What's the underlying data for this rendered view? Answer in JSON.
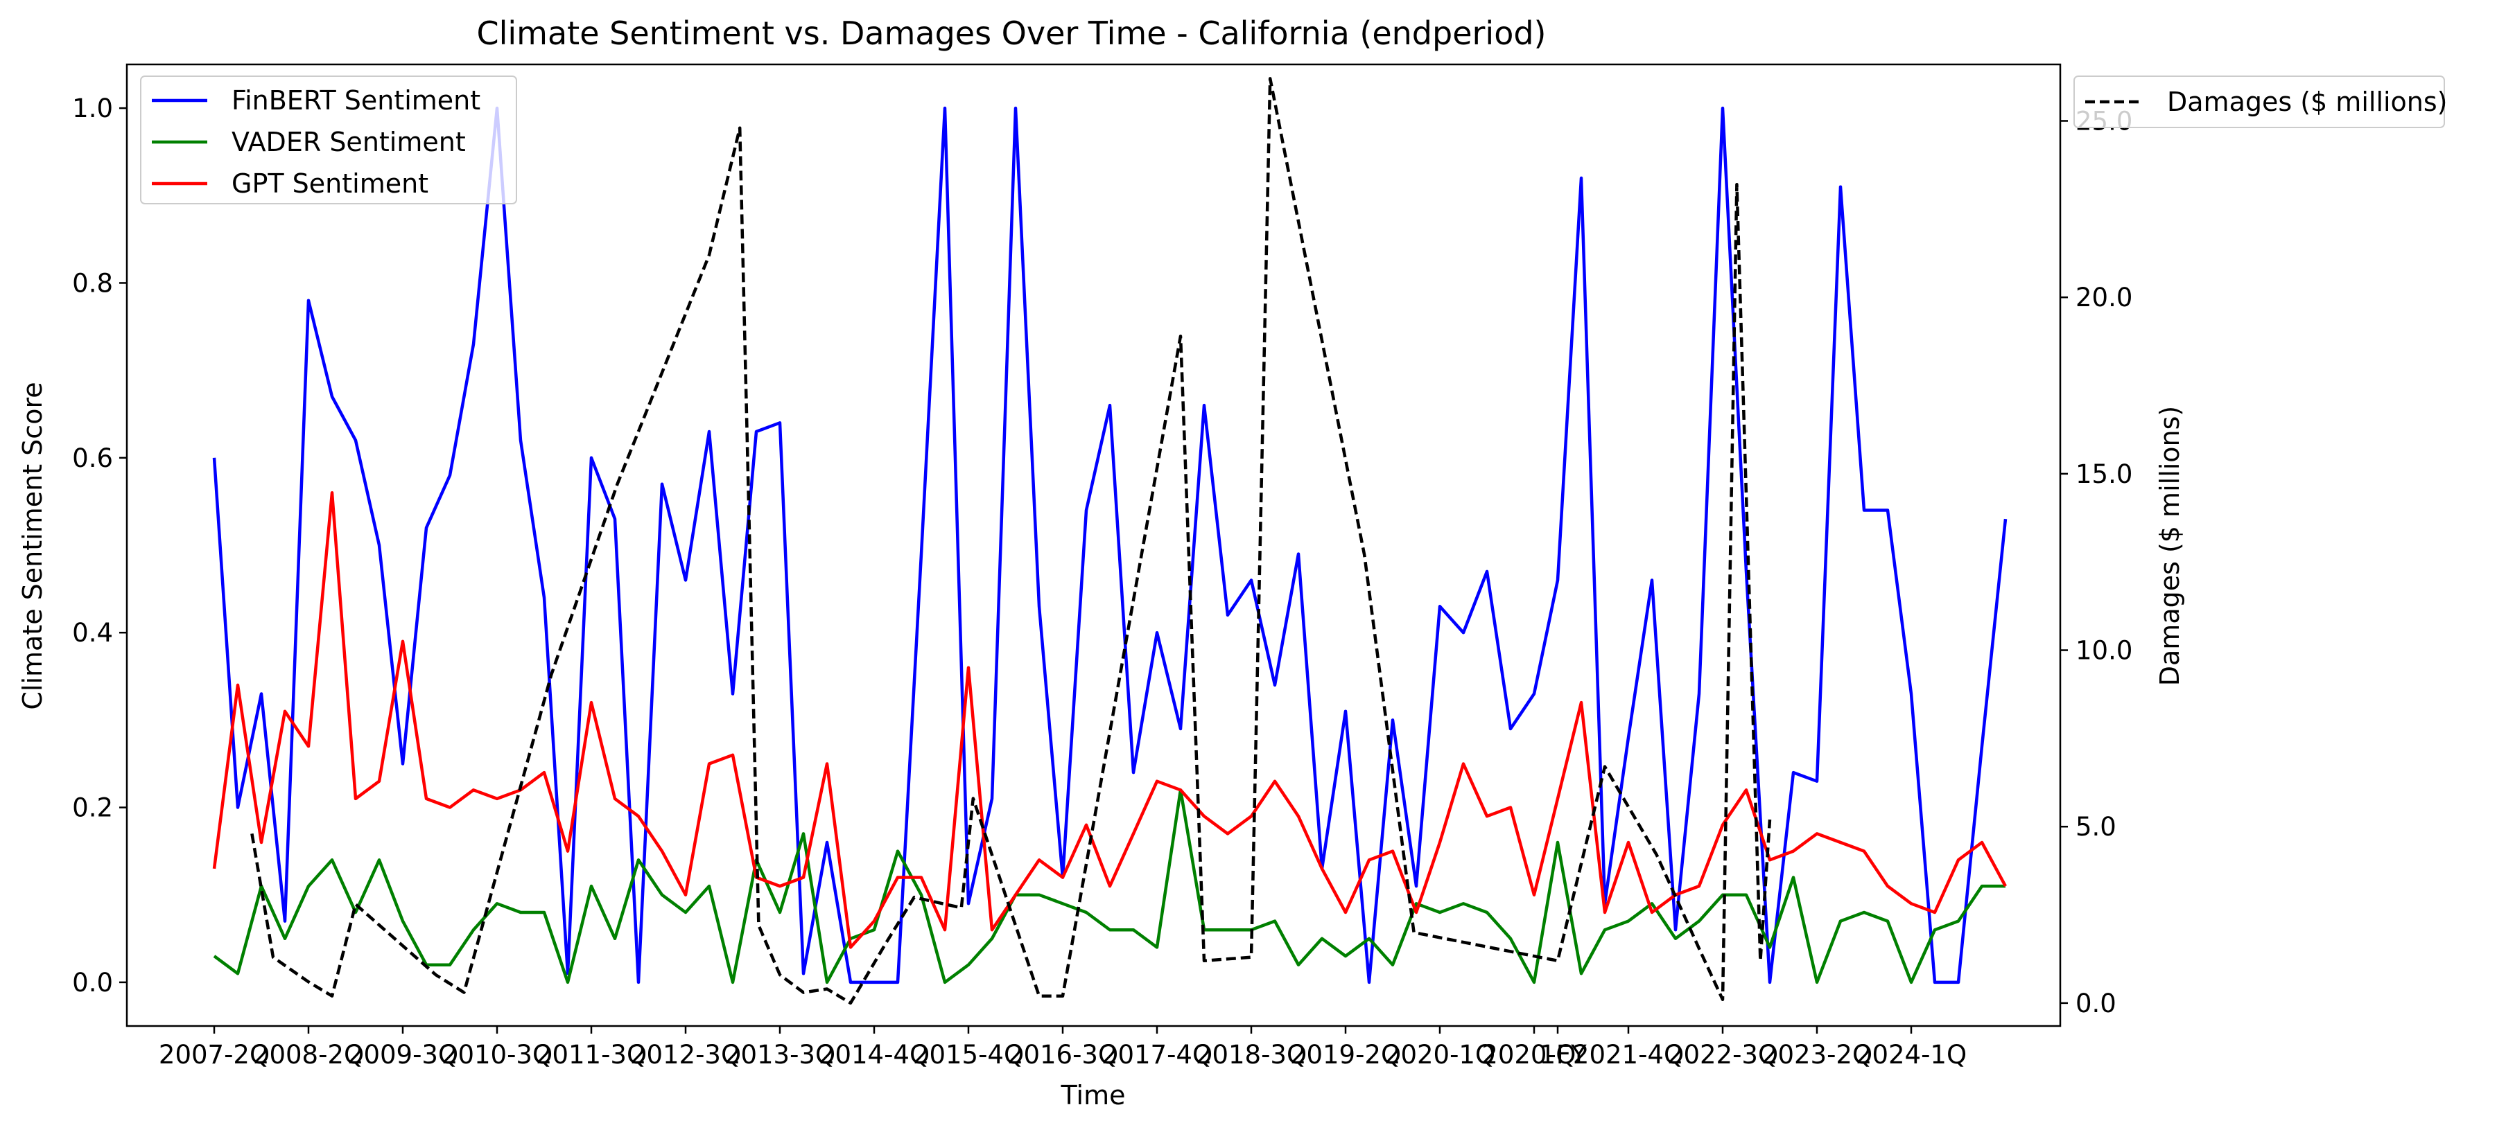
{
  "chart_data": {
    "type": "line",
    "title": "Climate Sentiment vs. Damages Over Time - California (endperiod)",
    "xlabel": "Time",
    "ylabel": "Climate Sentiment Score",
    "y2label": "Damages ($ millions)",
    "ylim": [
      -0.05,
      1.05
    ],
    "y2lim": [
      -0.65,
      26.6
    ],
    "yticks": [
      "0.0",
      "0.2",
      "0.4",
      "0.6",
      "0.8",
      "1.0"
    ],
    "y2ticks": [
      "0.0",
      "5.0",
      "10.0",
      "15.0",
      "20.0",
      "25.0"
    ],
    "grid": false,
    "legend_left": "top-left",
    "legend_right": "outside top-right",
    "xticks": [
      {
        "index": 0,
        "label": "2007-2Q"
      },
      {
        "index": 4,
        "label": "2008-2Q"
      },
      {
        "index": 8,
        "label": "2009-3Q"
      },
      {
        "index": 12,
        "label": "2010-3Q"
      },
      {
        "index": 16,
        "label": "2011-3Q"
      },
      {
        "index": 20,
        "label": "2012-3Q"
      },
      {
        "index": 24,
        "label": "2013-3Q"
      },
      {
        "index": 28,
        "label": "2014-4Q"
      },
      {
        "index": 32,
        "label": "2015-4Q"
      },
      {
        "index": 36,
        "label": "2016-3Q"
      },
      {
        "index": 40,
        "label": "2017-4Q"
      },
      {
        "index": 44,
        "label": "2018-3Q"
      },
      {
        "index": 48,
        "label": "2019-2Q"
      },
      {
        "index": 52,
        "label": "2020-1Q"
      },
      {
        "index": 56,
        "label": "2020-FY"
      },
      {
        "index": 57,
        "label": "1Q"
      },
      {
        "index": 60,
        "label": "2021-4Q"
      },
      {
        "index": 64,
        "label": "2022-3Q"
      },
      {
        "index": 68,
        "label": "2023-2Q"
      },
      {
        "index": 72,
        "label": "2024-1Q"
      }
    ],
    "x": [
      0,
      1,
      2,
      3,
      4,
      5,
      6,
      7,
      8,
      9,
      10,
      11,
      12,
      13,
      14,
      15,
      16,
      17,
      18,
      19,
      20,
      21,
      22,
      23,
      24,
      25,
      26,
      27,
      28,
      29,
      30,
      31,
      32,
      33,
      34,
      35,
      36,
      37,
      38,
      39,
      40,
      41,
      42,
      43,
      44,
      45,
      46,
      47,
      48,
      49,
      50,
      51,
      52,
      53,
      54,
      55,
      56,
      57,
      58,
      59,
      60,
      61,
      62,
      63,
      64,
      65,
      66,
      67,
      68,
      69,
      70,
      71,
      72,
      73,
      74,
      75,
      76
    ],
    "series": [
      {
        "name": "FinBERT Sentiment",
        "color": "#0000ff",
        "axis": "left",
        "values": [
          0.6,
          0.2,
          0.33,
          0.07,
          0.78,
          0.67,
          0.62,
          0.5,
          0.25,
          0.52,
          0.58,
          0.73,
          1.0,
          0.62,
          0.44,
          0.01,
          0.6,
          0.53,
          0.0,
          0.57,
          0.46,
          0.63,
          0.33,
          0.63,
          0.64,
          0.01,
          0.16,
          0.0,
          0.0,
          0.0,
          0.49,
          1.0,
          0.09,
          0.21,
          1.0,
          0.43,
          0.12,
          0.54,
          0.66,
          0.24,
          0.4,
          0.29,
          0.66,
          0.42,
          0.46,
          0.34,
          0.49,
          0.13,
          0.31,
          0.0,
          0.3,
          0.11,
          0.43,
          0.4,
          0.47,
          0.29,
          0.33,
          0.46,
          0.92,
          0.09,
          0.28,
          0.46,
          0.06,
          0.33,
          1.0,
          0.47,
          0.0,
          0.24,
          0.23,
          0.91,
          0.54,
          0.54,
          0.33,
          0.0,
          0.0,
          0.27,
          0.53
        ]
      },
      {
        "name": "VADER Sentiment",
        "color": "#008000",
        "axis": "left",
        "values": [
          0.03,
          0.01,
          0.11,
          0.05,
          0.11,
          0.14,
          0.08,
          0.14,
          0.07,
          0.02,
          0.02,
          0.06,
          0.09,
          0.08,
          0.08,
          0.0,
          0.11,
          0.05,
          0.14,
          0.1,
          0.08,
          0.11,
          0.0,
          0.14,
          0.08,
          0.17,
          0.0,
          0.05,
          0.06,
          0.15,
          0.1,
          0.0,
          0.02,
          0.05,
          0.1,
          0.1,
          0.09,
          0.08,
          0.06,
          0.06,
          0.04,
          0.22,
          0.06,
          0.06,
          0.06,
          0.07,
          0.02,
          0.05,
          0.03,
          0.05,
          0.02,
          0.09,
          0.08,
          0.09,
          0.08,
          0.05,
          0.0,
          0.16,
          0.01,
          0.06,
          0.07,
          0.09,
          0.05,
          0.07,
          0.1,
          0.1,
          0.04,
          0.12,
          0.0,
          0.07,
          0.08,
          0.07,
          0.0,
          0.06,
          0.07,
          0.11,
          0.11
        ]
      },
      {
        "name": "GPT Sentiment",
        "color": "#ff0000",
        "axis": "left",
        "values": [
          0.13,
          0.34,
          0.16,
          0.31,
          0.27,
          0.56,
          0.21,
          0.23,
          0.39,
          0.21,
          0.2,
          0.22,
          0.21,
          0.22,
          0.24,
          0.15,
          0.32,
          0.21,
          0.19,
          0.15,
          0.1,
          0.25,
          0.26,
          0.12,
          0.11,
          0.12,
          0.25,
          0.04,
          0.07,
          0.12,
          0.12,
          0.06,
          0.36,
          0.06,
          0.1,
          0.14,
          0.12,
          0.18,
          0.11,
          0.17,
          0.23,
          0.22,
          0.19,
          0.17,
          0.19,
          0.23,
          0.19,
          0.13,
          0.08,
          0.14,
          0.15,
          0.08,
          0.16,
          0.25,
          0.19,
          0.2,
          0.1,
          0.21,
          0.32,
          0.08,
          0.16,
          0.08,
          0.1,
          0.11,
          0.18,
          0.22,
          0.14,
          0.15,
          0.17,
          0.16,
          0.15,
          0.11,
          0.09,
          0.08,
          0.14,
          0.16,
          0.11
        ]
      },
      {
        "name": "Damages ($ millions)",
        "color": "#000000",
        "axis": "right",
        "dashed": true,
        "points": [
          [
            1.6,
            4.8
          ],
          [
            2.5,
            1.3
          ],
          [
            4.0,
            0.6
          ],
          [
            5.0,
            0.2
          ],
          [
            6.0,
            2.8
          ],
          [
            9.4,
            0.8
          ],
          [
            10.6,
            0.3
          ],
          [
            14.3,
            9.3
          ],
          [
            17.1,
            14.7
          ],
          [
            21.0,
            21.2
          ],
          [
            22.3,
            24.8
          ],
          [
            23.1,
            2.2
          ],
          [
            24.0,
            0.8
          ],
          [
            25.0,
            0.3
          ],
          [
            26.0,
            0.4
          ],
          [
            27.0,
            0.0
          ],
          [
            28.5,
            1.7
          ],
          [
            29.7,
            3.0
          ],
          [
            31.7,
            2.7
          ],
          [
            32.2,
            5.8
          ],
          [
            35.0,
            0.2
          ],
          [
            36.0,
            0.2
          ],
          [
            41.0,
            18.9
          ],
          [
            42.0,
            1.2
          ],
          [
            44.0,
            1.3
          ],
          [
            44.8,
            26.2
          ],
          [
            48.8,
            12.7
          ],
          [
            50.9,
            2.0
          ],
          [
            57.0,
            1.2
          ],
          [
            59.0,
            6.7
          ],
          [
            61.2,
            4.2
          ],
          [
            63.1,
            1.4
          ],
          [
            64.0,
            0.1
          ],
          [
            64.6,
            23.2
          ],
          [
            65.6,
            1.2
          ],
          [
            66.0,
            5.2
          ]
        ]
      }
    ]
  }
}
